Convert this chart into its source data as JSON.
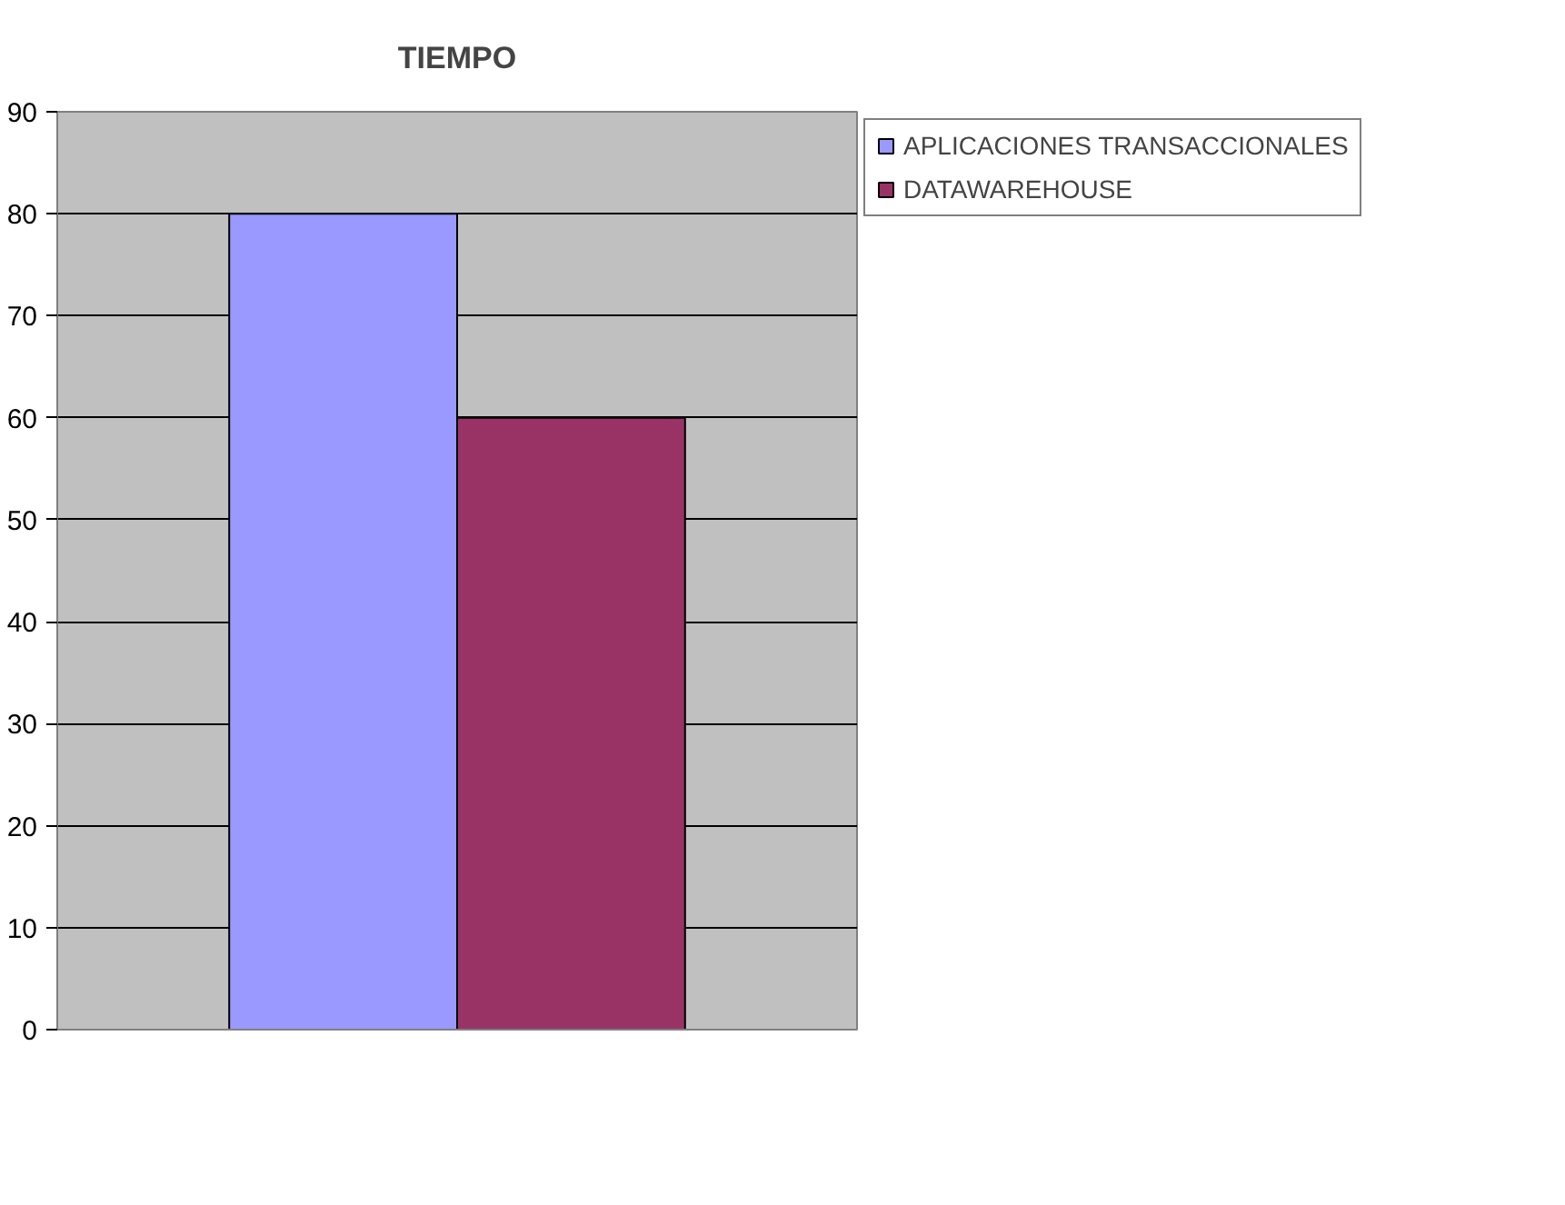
{
  "chart_data": {
    "type": "bar",
    "title": "TIEMPO",
    "categories": [
      null
    ],
    "series": [
      {
        "name": "APLICACIONES TRANSACCIONALES",
        "color": "#9999ff",
        "values": [
          80
        ]
      },
      {
        "name": "DATAWAREHOUSE",
        "color": "#993366",
        "values": [
          60
        ]
      }
    ],
    "ylim": [
      0,
      90
    ],
    "yticks": [
      0,
      10,
      20,
      30,
      40,
      50,
      60,
      70,
      80,
      90
    ],
    "grid": "y",
    "legend": "right"
  }
}
